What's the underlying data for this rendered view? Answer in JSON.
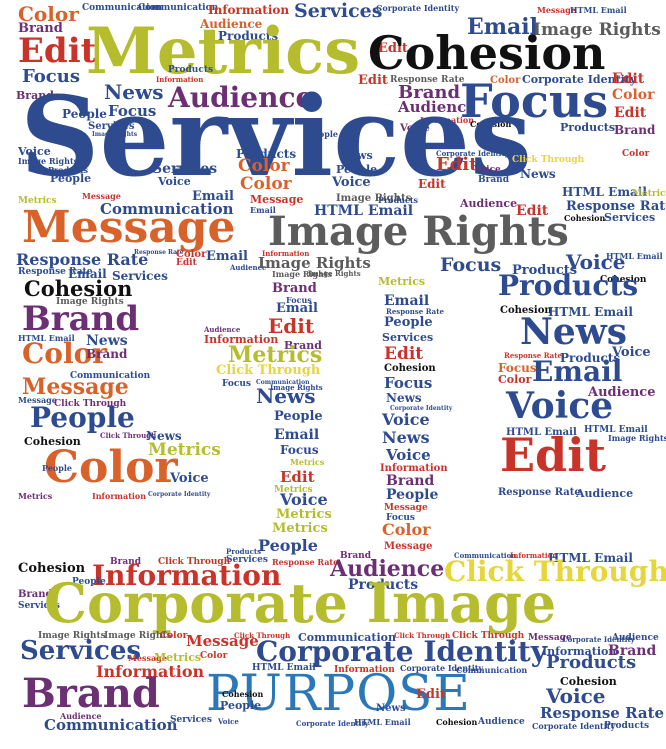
{
  "palette": {
    "blue": "#2e4b8f",
    "orange": "#d9622b",
    "red": "#c8342a",
    "purple": "#6d2f74",
    "lime": "#b5bd2e",
    "gray": "#5c5c5c",
    "black": "#111111",
    "yellow": "#e6d63a",
    "cyan": "#2a78b8"
  },
  "words": {
    "services_big": "Services",
    "metrics_big": "Metrics",
    "cohesion_big": "Cohesion",
    "message_big": "Message",
    "image_rights_big": "Image Rights",
    "corporate_image_big": "Corporate Image",
    "purpose_big": "PURPOSE",
    "brand_big": "Brand",
    "edit_big": "Edit",
    "information_big": "Information",
    "corporate_identity_big": "Corporate Identity",
    "click_through_big": "Click Through",
    "news_big": "News",
    "focus_big": "Focus",
    "audience_big": "Audience",
    "color_big": "Color",
    "voice_big": "Voice",
    "email_big": "Email",
    "people_big": "People",
    "products_big": "Products",
    "response_rate": "Response Rate",
    "communication": "Communication",
    "html_email": "HTML Email",
    "edit": "Edit",
    "color": "Color",
    "focus": "Focus",
    "brand": "Brand",
    "news": "News",
    "people": "People",
    "audience": "Audience",
    "email": "Email",
    "products": "Products",
    "voice": "Voice",
    "services": "Services",
    "metrics": "Metrics",
    "cohesion": "Cohesion",
    "message": "Message",
    "information": "Information",
    "image_rights": "Image Rights",
    "corporate_identity": "Corporate Identity",
    "click_through": "Click Through"
  }
}
